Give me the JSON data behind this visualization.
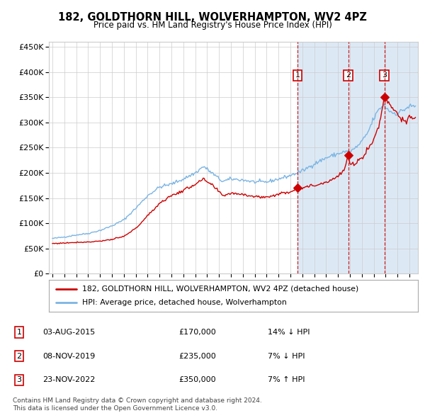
{
  "title": "182, GOLDTHORN HILL, WOLVERHAMPTON, WV2 4PZ",
  "subtitle": "Price paid vs. HM Land Registry's House Price Index (HPI)",
  "legend_line1": "182, GOLDTHORN HILL, WOLVERHAMPTON, WV2 4PZ (detached house)",
  "legend_line2": "HPI: Average price, detached house, Wolverhampton",
  "transactions": [
    {
      "num": 1,
      "date": "03-AUG-2015",
      "price": 170000,
      "pct": "14%",
      "dir": "↓",
      "year_dec": 2015.586
    },
    {
      "num": 2,
      "date": "08-NOV-2019",
      "price": 235000,
      "pct": "7%",
      "dir": "↓",
      "year_dec": 2019.854
    },
    {
      "num": 3,
      "date": "23-NOV-2022",
      "price": 350000,
      "pct": "7%",
      "dir": "↑",
      "year_dec": 2022.893
    }
  ],
  "red_line_color": "#cc0000",
  "blue_line_color": "#7bb4e3",
  "shade_color": "#dce9f5",
  "vline_color": "#cc0000",
  "grid_color": "#cccccc",
  "bg_color": "#ffffff",
  "box_color": "#cc0000",
  "ylim": [
    0,
    460000
  ],
  "yticks": [
    0,
    50000,
    100000,
    150000,
    200000,
    250000,
    300000,
    350000,
    400000,
    450000
  ],
  "xlim_start": 1994.7,
  "xlim_end": 2025.7,
  "xticks": [
    1995,
    1996,
    1997,
    1998,
    1999,
    2000,
    2001,
    2002,
    2003,
    2004,
    2005,
    2006,
    2007,
    2008,
    2009,
    2010,
    2011,
    2012,
    2013,
    2014,
    2015,
    2016,
    2017,
    2018,
    2019,
    2020,
    2021,
    2022,
    2023,
    2024,
    2025
  ],
  "footnote1": "Contains HM Land Registry data © Crown copyright and database right 2024.",
  "footnote2": "This data is licensed under the Open Government Licence v3.0.",
  "hpi_anchors": {
    "1995.0": 70000,
    "1996.0": 73000,
    "1997.0": 77000,
    "1998.0": 80000,
    "1999.0": 86000,
    "2000.0": 95000,
    "2001.0": 107000,
    "2002.0": 130000,
    "2003.0": 155000,
    "2004.0": 172000,
    "2005.0": 178000,
    "2006.0": 188000,
    "2007.0": 200000,
    "2007.7": 213000,
    "2008.5": 198000,
    "2009.3": 183000,
    "2010.0": 188000,
    "2011.0": 186000,
    "2012.0": 182000,
    "2013.0": 182000,
    "2014.0": 188000,
    "2015.0": 195000,
    "2016.0": 204000,
    "2017.0": 218000,
    "2018.0": 230000,
    "2019.0": 238000,
    "2019.5": 242000,
    "2020.0": 242000,
    "2020.5": 250000,
    "2021.0": 262000,
    "2021.5": 280000,
    "2022.0": 308000,
    "2022.5": 328000,
    "2022.9": 335000,
    "2023.0": 330000,
    "2023.5": 320000,
    "2024.0": 318000,
    "2024.5": 325000,
    "2025.0": 332000
  },
  "red_anchors": {
    "1995.0": 60000,
    "1996.0": 61000,
    "1997.0": 62500,
    "1998.0": 63000,
    "1999.0": 65000,
    "2000.0": 68000,
    "2001.0": 74000,
    "2002.0": 90000,
    "2003.0": 115000,
    "2004.0": 140000,
    "2005.0": 155000,
    "2006.0": 165000,
    "2007.0": 178000,
    "2007.7": 187000,
    "2008.5": 174000,
    "2009.3": 155000,
    "2010.0": 160000,
    "2011.0": 158000,
    "2012.0": 153000,
    "2013.0": 152000,
    "2014.0": 158000,
    "2015.0": 163000,
    "2015.586": 170000,
    "2016.0": 171000,
    "2017.0": 175000,
    "2018.0": 182000,
    "2019.0": 193000,
    "2019.5": 205000,
    "2019.854": 235000,
    "2020.0": 215000,
    "2020.5": 220000,
    "2021.0": 230000,
    "2021.5": 248000,
    "2022.0": 265000,
    "2022.5": 300000,
    "2022.893": 350000,
    "2023.1": 345000,
    "2023.5": 332000,
    "2024.0": 318000,
    "2024.3": 308000,
    "2024.7": 298000,
    "2025.0": 310000
  }
}
